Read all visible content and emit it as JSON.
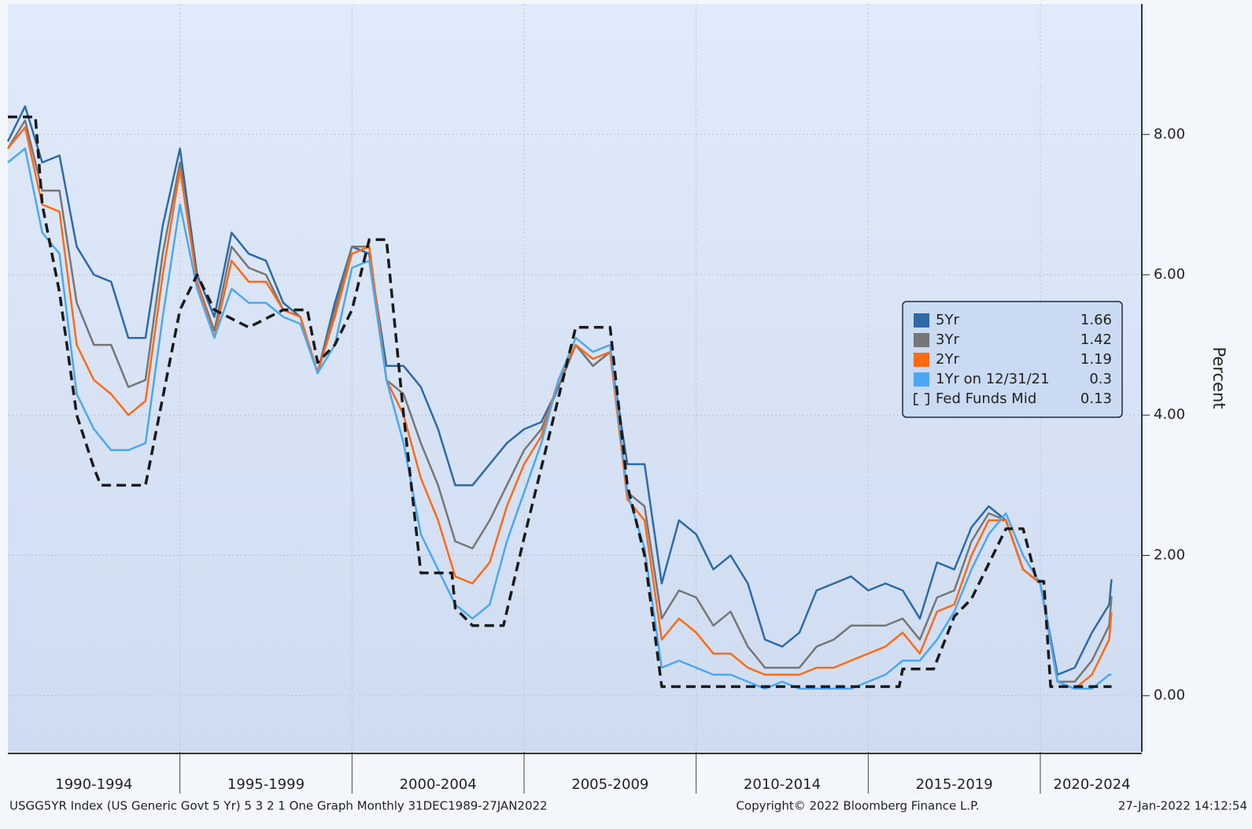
{
  "chart_data": {
    "type": "line",
    "y_label": "Percent",
    "footer_left": "USGG5YR Index (US Generic Govt 5 Yr) 5 3 2 1 One Graph  Monthly 31DEC1989-27JAN2022",
    "footer_center": "Copyright© 2022 Bloomberg Finance L.P.",
    "footer_right": "27-Jan-2022 14:12:54",
    "xlim": [
      1990,
      2022.95
    ],
    "ylim": [
      -0.8,
      9.86
    ],
    "xticks": [
      1995,
      2000,
      2005,
      2010,
      2015,
      2020
    ],
    "x_period_labels": [
      {
        "value": 1992.5,
        "label": "1990-1994"
      },
      {
        "value": 1997.5,
        "label": "1995-1999"
      },
      {
        "value": 2002.5,
        "label": "2000-2004"
      },
      {
        "value": 2007.5,
        "label": "2005-2009"
      },
      {
        "value": 2012.5,
        "label": "2010-2014"
      },
      {
        "value": 2017.5,
        "label": "2015-2019"
      },
      {
        "value": 2021.5,
        "label": "2020-2024"
      }
    ],
    "yticks": [
      {
        "value": 0,
        "label": "0.00"
      },
      {
        "value": 2,
        "label": "2.00"
      },
      {
        "value": 4,
        "label": "4.00"
      },
      {
        "value": 6,
        "label": "6.00"
      },
      {
        "value": 8,
        "label": "8.00"
      }
    ],
    "grid": true,
    "x": [
      1990.0,
      1990.5,
      1991.0,
      1991.5,
      1992.0,
      1992.5,
      1993.0,
      1993.5,
      1994.0,
      1994.5,
      1995.0,
      1995.5,
      1996.0,
      1996.5,
      1997.0,
      1997.5,
      1998.0,
      1998.5,
      1999.0,
      1999.5,
      2000.0,
      2000.5,
      2001.0,
      2001.5,
      2002.0,
      2002.5,
      2003.0,
      2003.5,
      2004.0,
      2004.5,
      2005.0,
      2005.5,
      2006.0,
      2006.5,
      2007.0,
      2007.5,
      2008.0,
      2008.5,
      2009.0,
      2009.5,
      2010.0,
      2010.5,
      2011.0,
      2011.5,
      2012.0,
      2012.5,
      2013.0,
      2013.5,
      2014.0,
      2014.5,
      2015.0,
      2015.5,
      2016.0,
      2016.5,
      2017.0,
      2017.5,
      2018.0,
      2018.5,
      2019.0,
      2019.5,
      2020.0,
      2020.5,
      2021.0,
      2021.5,
      2022.0,
      2022.07
    ],
    "series": [
      {
        "name": "5Yr",
        "color": "#2d6aa8",
        "last": 1.66,
        "values": [
          7.9,
          8.4,
          7.6,
          7.7,
          6.4,
          6.0,
          5.9,
          5.1,
          5.1,
          6.7,
          7.8,
          6.0,
          5.4,
          6.6,
          6.3,
          6.2,
          5.6,
          5.4,
          4.6,
          5.6,
          6.4,
          6.3,
          4.7,
          4.7,
          4.4,
          3.8,
          3.0,
          3.0,
          3.3,
          3.6,
          3.8,
          3.9,
          4.4,
          5.0,
          4.7,
          4.9,
          3.3,
          3.3,
          1.6,
          2.5,
          2.3,
          1.8,
          2.0,
          1.6,
          0.8,
          0.7,
          0.9,
          1.5,
          1.6,
          1.7,
          1.5,
          1.6,
          1.5,
          1.1,
          1.9,
          1.8,
          2.4,
          2.7,
          2.5,
          1.8,
          1.6,
          0.3,
          0.4,
          0.9,
          1.3,
          1.66
        ]
      },
      {
        "name": "3Yr",
        "color": "#767676",
        "last": 1.42,
        "values": [
          7.8,
          8.2,
          7.2,
          7.2,
          5.6,
          5.0,
          5.0,
          4.4,
          4.5,
          6.3,
          7.6,
          5.9,
          5.2,
          6.4,
          6.1,
          6.0,
          5.5,
          5.4,
          4.6,
          5.5,
          6.4,
          6.4,
          4.5,
          4.3,
          3.6,
          3.0,
          2.2,
          2.1,
          2.5,
          3.0,
          3.5,
          3.8,
          4.4,
          5.0,
          4.7,
          4.9,
          2.9,
          2.7,
          1.1,
          1.5,
          1.4,
          1.0,
          1.2,
          0.7,
          0.4,
          0.4,
          0.4,
          0.7,
          0.8,
          1.0,
          1.0,
          1.0,
          1.1,
          0.8,
          1.4,
          1.5,
          2.2,
          2.6,
          2.5,
          1.8,
          1.6,
          0.2,
          0.2,
          0.5,
          1.0,
          1.42
        ]
      },
      {
        "name": "2Yr",
        "color": "#ff6a13",
        "last": 1.19,
        "values": [
          7.8,
          8.1,
          7.0,
          6.9,
          5.0,
          4.5,
          4.3,
          4.0,
          4.2,
          6.0,
          7.5,
          5.9,
          5.1,
          6.2,
          5.9,
          5.9,
          5.5,
          5.4,
          4.6,
          5.4,
          6.3,
          6.4,
          4.5,
          4.0,
          3.1,
          2.5,
          1.7,
          1.6,
          1.9,
          2.7,
          3.3,
          3.7,
          4.5,
          5.0,
          4.8,
          4.9,
          2.8,
          2.5,
          0.8,
          1.1,
          0.9,
          0.6,
          0.6,
          0.4,
          0.3,
          0.3,
          0.3,
          0.4,
          0.4,
          0.5,
          0.6,
          0.7,
          0.9,
          0.6,
          1.2,
          1.3,
          2.0,
          2.5,
          2.5,
          1.8,
          1.6,
          0.2,
          0.1,
          0.3,
          0.8,
          1.19
        ]
      },
      {
        "name": "1Yr on 12/31/21",
        "color": "#4aa8f2",
        "last": 0.3,
        "values": [
          7.6,
          7.8,
          6.6,
          6.3,
          4.3,
          3.8,
          3.5,
          3.5,
          3.6,
          5.4,
          7.0,
          5.8,
          5.1,
          5.8,
          5.6,
          5.6,
          5.4,
          5.3,
          4.6,
          5.0,
          6.1,
          6.2,
          4.5,
          3.6,
          2.3,
          1.8,
          1.3,
          1.1,
          1.3,
          2.2,
          2.9,
          3.6,
          4.5,
          5.1,
          4.9,
          5.0,
          2.9,
          2.1,
          0.4,
          0.5,
          0.4,
          0.3,
          0.3,
          0.2,
          0.1,
          0.2,
          0.1,
          0.1,
          0.1,
          0.1,
          0.2,
          0.3,
          0.5,
          0.5,
          0.8,
          1.2,
          1.8,
          2.3,
          2.6,
          2.0,
          1.6,
          0.2,
          0.1,
          0.1,
          0.3,
          0.3
        ]
      },
      {
        "name": "Fed Funds Mid",
        "color": "#1a1a1a",
        "dashed": true,
        "last": 0.13,
        "x": [
          1990.0,
          1990.8,
          1991.0,
          1991.5,
          1992.0,
          1992.5,
          1992.7,
          1994.0,
          1994.5,
          1995.0,
          1995.5,
          1996.0,
          1997.0,
          1998.0,
          1998.7,
          1999.0,
          1999.5,
          2000.0,
          2000.5,
          2001.0,
          2001.5,
          2002.0,
          2002.9,
          2003.0,
          2003.5,
          2004.4,
          2005.0,
          2005.5,
          2006.0,
          2006.5,
          2007.5,
          2008.0,
          2008.5,
          2009.0,
          2015.9,
          2016.0,
          2016.9,
          2017.5,
          2018.0,
          2018.5,
          2019.0,
          2019.5,
          2019.9,
          2020.1,
          2020.3,
          2022.07
        ],
        "values": [
          8.25,
          8.25,
          7.0,
          5.75,
          4.0,
          3.25,
          3.0,
          3.0,
          4.25,
          5.5,
          6.0,
          5.5,
          5.25,
          5.5,
          5.5,
          4.75,
          5.0,
          5.5,
          6.5,
          6.5,
          4.0,
          1.75,
          1.75,
          1.25,
          1.0,
          1.0,
          2.25,
          3.25,
          4.25,
          5.25,
          5.25,
          3.0,
          2.0,
          0.13,
          0.13,
          0.38,
          0.38,
          1.13,
          1.38,
          1.88,
          2.38,
          2.38,
          1.63,
          1.63,
          0.13,
          0.13
        ]
      }
    ]
  }
}
